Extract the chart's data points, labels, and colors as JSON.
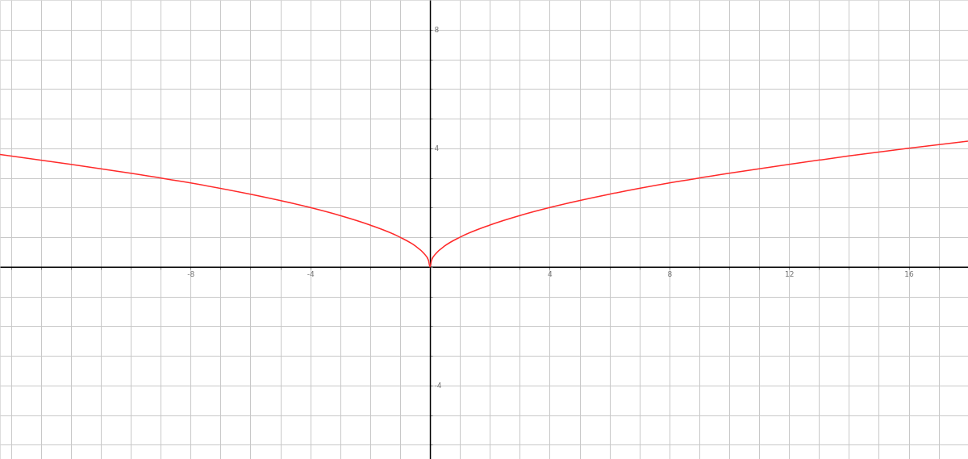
{
  "chart_data": {
    "type": "line",
    "xlim": [
      -14.37,
      17.98
    ],
    "ylim": [
      -6.48,
      9.0
    ],
    "xticks": [
      {
        "value": -14,
        "label": null
      },
      {
        "value": -13,
        "label": null
      },
      {
        "value": -12,
        "label": null
      },
      {
        "value": -11,
        "label": null
      },
      {
        "value": -10,
        "label": null
      },
      {
        "value": -9,
        "label": null
      },
      -8,
      {
        "value": -7,
        "label": null
      },
      {
        "value": -6,
        "label": null
      },
      {
        "value": -5,
        "label": null
      },
      -4,
      {
        "value": -3,
        "label": null
      },
      {
        "value": -2,
        "label": null
      },
      {
        "value": -1,
        "label": null
      },
      {
        "value": 0,
        "label": null
      },
      {
        "value": 1,
        "label": null
      },
      {
        "value": 2,
        "label": null
      },
      {
        "value": 3,
        "label": null
      },
      4,
      {
        "value": 5,
        "label": null
      },
      {
        "value": 6,
        "label": null
      },
      {
        "value": 7,
        "label": null
      },
      8,
      {
        "value": 9,
        "label": null
      },
      {
        "value": 10,
        "label": null
      },
      {
        "value": 11,
        "label": null
      },
      12,
      {
        "value": 13,
        "label": null
      },
      {
        "value": 14,
        "label": null
      },
      {
        "value": 15,
        "label": null
      },
      16,
      {
        "value": 17,
        "label": null
      }
    ],
    "yticks": [
      {
        "value": -6,
        "label": null
      },
      {
        "value": -5,
        "label": null
      },
      -4,
      {
        "value": -3,
        "label": null
      },
      {
        "value": -2,
        "label": null
      },
      {
        "value": -1,
        "label": null
      },
      {
        "value": 0,
        "label": null
      },
      {
        "value": 1,
        "label": null
      },
      {
        "value": 2,
        "label": null
      },
      {
        "value": 3,
        "label": null
      },
      4,
      {
        "value": 5,
        "label": null
      },
      {
        "value": 6,
        "label": null
      },
      {
        "value": 7,
        "label": null
      },
      8
    ],
    "grid": true,
    "series": [
      {
        "color": "#ff2a2a",
        "x": [
          -14.37,
          -12,
          -10,
          -8,
          -6,
          -4,
          -3,
          -2,
          -1,
          -0.5,
          -0.2,
          -0.05,
          0,
          0.05,
          0.2,
          0.5,
          1,
          2,
          3,
          4,
          6,
          8,
          10,
          12,
          14,
          16,
          17.98
        ],
        "values": [
          3.79,
          3.46,
          3.16,
          2.83,
          2.45,
          2.0,
          1.73,
          1.41,
          1.0,
          0.71,
          0.45,
          0.22,
          0,
          0.22,
          0.45,
          0.71,
          1.0,
          1.41,
          1.73,
          2.0,
          2.45,
          2.83,
          3.16,
          3.46,
          3.74,
          4.0,
          4.24
        ]
      }
    ]
  }
}
